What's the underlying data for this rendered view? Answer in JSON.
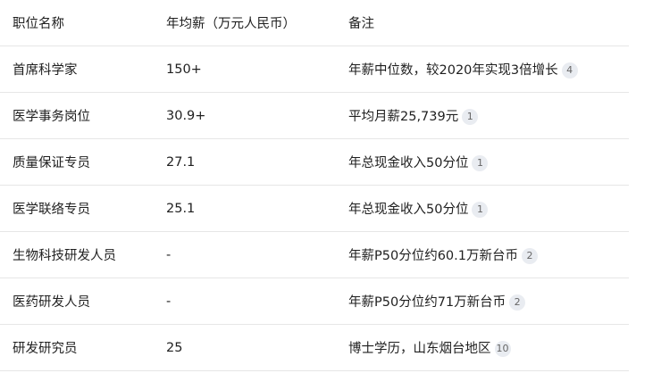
{
  "table": {
    "headers": [
      "职位名称",
      "年均薪（万元人民币）",
      "备注"
    ],
    "rows": [
      {
        "title": "首席科学家",
        "salary": "150+",
        "note": "年薪中位数，较2020年实现3倍增长",
        "ref": "4"
      },
      {
        "title": "医学事务岗位",
        "salary": "30.9+",
        "note": "平均月薪25,739元",
        "ref": "1"
      },
      {
        "title": "质量保证专员",
        "salary": "27.1",
        "note": "年总现金收入50分位",
        "ref": "1"
      },
      {
        "title": "医学联络专员",
        "salary": "25.1",
        "note": "年总现金收入50分位",
        "ref": "1"
      },
      {
        "title": "生物科技研发人员",
        "salary": "-",
        "note": "年薪P50分位约60.1万新台币",
        "ref": "2"
      },
      {
        "title": "医药研发人员",
        "salary": "-",
        "note": "年薪P50分位约71万新台币",
        "ref": "2"
      },
      {
        "title": "研发研究员",
        "salary": "25",
        "note": "博士学历，山东烟台地区",
        "ref": "10"
      }
    ]
  }
}
